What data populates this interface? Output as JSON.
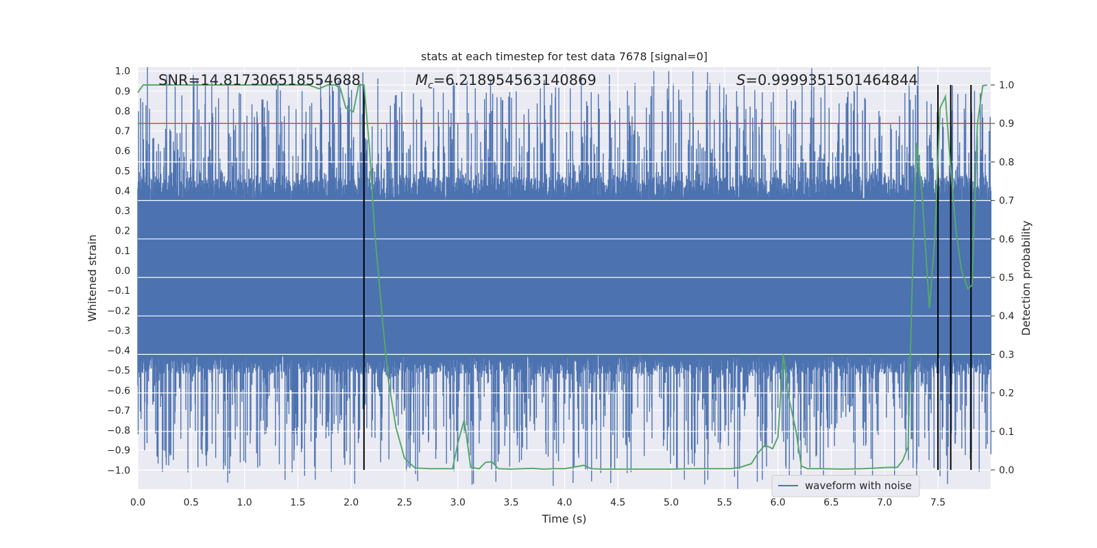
{
  "chart_data": {
    "type": "line",
    "title": "stats at each timestep for test data 7678 [signal=0]",
    "xlabel": "Time (s)",
    "ylabel": "Whitened strain",
    "y2label": "Detection probability",
    "xlim": [
      0.0,
      8.0
    ],
    "ylim": [
      -1.1,
      1.0
    ],
    "y2lim": [
      -0.05,
      1.05
    ],
    "xticks": [
      "0.0",
      "0.5",
      "1.0",
      "1.5",
      "2.0",
      "2.5",
      "3.0",
      "3.5",
      "4.0",
      "4.5",
      "5.0",
      "5.5",
      "6.0",
      "6.5",
      "7.0",
      "7.5"
    ],
    "yticks": [
      "1.0",
      "0.9",
      "0.8",
      "0.7",
      "0.6",
      "0.5",
      "0.4",
      "0.3",
      "0.2",
      "0.1",
      "0.0",
      "−0.1",
      "−0.2",
      "−0.3",
      "−0.4",
      "−0.5",
      "−0.6",
      "−0.7",
      "−0.8",
      "−0.9",
      "−1.0"
    ],
    "y2ticks": [
      "1.0",
      "0.9",
      "0.8",
      "0.7",
      "0.6",
      "0.5",
      "0.4",
      "0.3",
      "0.2",
      "0.1",
      "0.0"
    ],
    "annotations": {
      "snr": "SNR=14.817306518554688",
      "mc_symbol": "M",
      "mc_sub": "c",
      "mc_value": "=6.218954563140869",
      "s_symbol": "S",
      "s_value": "=0.9999351501464844"
    },
    "legend": {
      "label": "waveform with noise",
      "position": "lower-right"
    },
    "threshold": 0.9,
    "vlines": [
      2.12,
      7.5,
      7.62,
      7.81
    ],
    "waveform": {
      "name": "waveform with noise",
      "color": "#4c72b0",
      "duration": 8.0,
      "samples": 2400,
      "upper_base": 0.35,
      "upper_peak_max": 0.92,
      "lower_base": -0.42,
      "lower_peak_min": -1.0
    },
    "probability": {
      "name": "Detection probability",
      "color": "#55a868",
      "x": [
        0.0,
        0.05,
        0.1,
        0.2,
        0.3,
        0.4,
        0.5,
        0.6,
        0.7,
        0.8,
        0.9,
        1.0,
        1.1,
        1.2,
        1.3,
        1.4,
        1.5,
        1.6,
        1.7,
        1.78,
        1.85,
        1.9,
        1.95,
        2.02,
        2.07,
        2.12,
        2.17,
        2.22,
        2.3,
        2.35,
        2.42,
        2.5,
        2.6,
        2.75,
        2.85,
        2.95,
        3.0,
        3.06,
        3.12,
        3.2,
        3.26,
        3.32,
        3.38,
        3.5,
        3.6,
        3.7,
        3.8,
        3.9,
        4.0,
        4.1,
        4.18,
        4.25,
        4.35,
        4.5,
        4.7,
        5.0,
        5.2,
        5.4,
        5.55,
        5.65,
        5.75,
        5.82,
        5.88,
        5.95,
        6.0,
        6.05,
        6.1,
        6.17,
        6.22,
        6.28,
        6.4,
        6.6,
        6.8,
        7.0,
        7.12,
        7.17,
        7.22,
        7.26,
        7.3,
        7.35,
        7.42,
        7.47,
        7.52,
        7.57,
        7.62,
        7.67,
        7.72,
        7.78,
        7.82,
        7.87,
        7.92,
        7.96
      ],
      "y": [
        0.98,
        1.0,
        1.0,
        1.0,
        1.0,
        1.0,
        1.0,
        1.0,
        1.0,
        1.0,
        1.0,
        1.0,
        1.0,
        1.0,
        1.0,
        1.0,
        1.0,
        1.0,
        0.99,
        1.0,
        1.0,
        0.99,
        0.94,
        0.93,
        1.0,
        1.0,
        0.84,
        0.62,
        0.37,
        0.23,
        0.11,
        0.03,
        0.005,
        0.003,
        0.003,
        0.003,
        0.07,
        0.13,
        0.007,
        0.003,
        0.02,
        0.021,
        0.003,
        0.002,
        0.003,
        0.004,
        0.002,
        0.003,
        0.003,
        0.008,
        0.012,
        0.003,
        0.002,
        0.002,
        0.002,
        0.002,
        0.003,
        0.003,
        0.003,
        0.007,
        0.016,
        0.046,
        0.065,
        0.055,
        0.085,
        0.3,
        0.19,
        0.1,
        0.01,
        0.003,
        0.003,
        0.002,
        0.003,
        0.006,
        0.007,
        0.025,
        0.06,
        0.5,
        0.85,
        0.72,
        0.42,
        0.6,
        0.94,
        0.97,
        0.78,
        0.62,
        0.52,
        0.47,
        0.48,
        0.9,
        0.998,
        1.0
      ]
    }
  }
}
